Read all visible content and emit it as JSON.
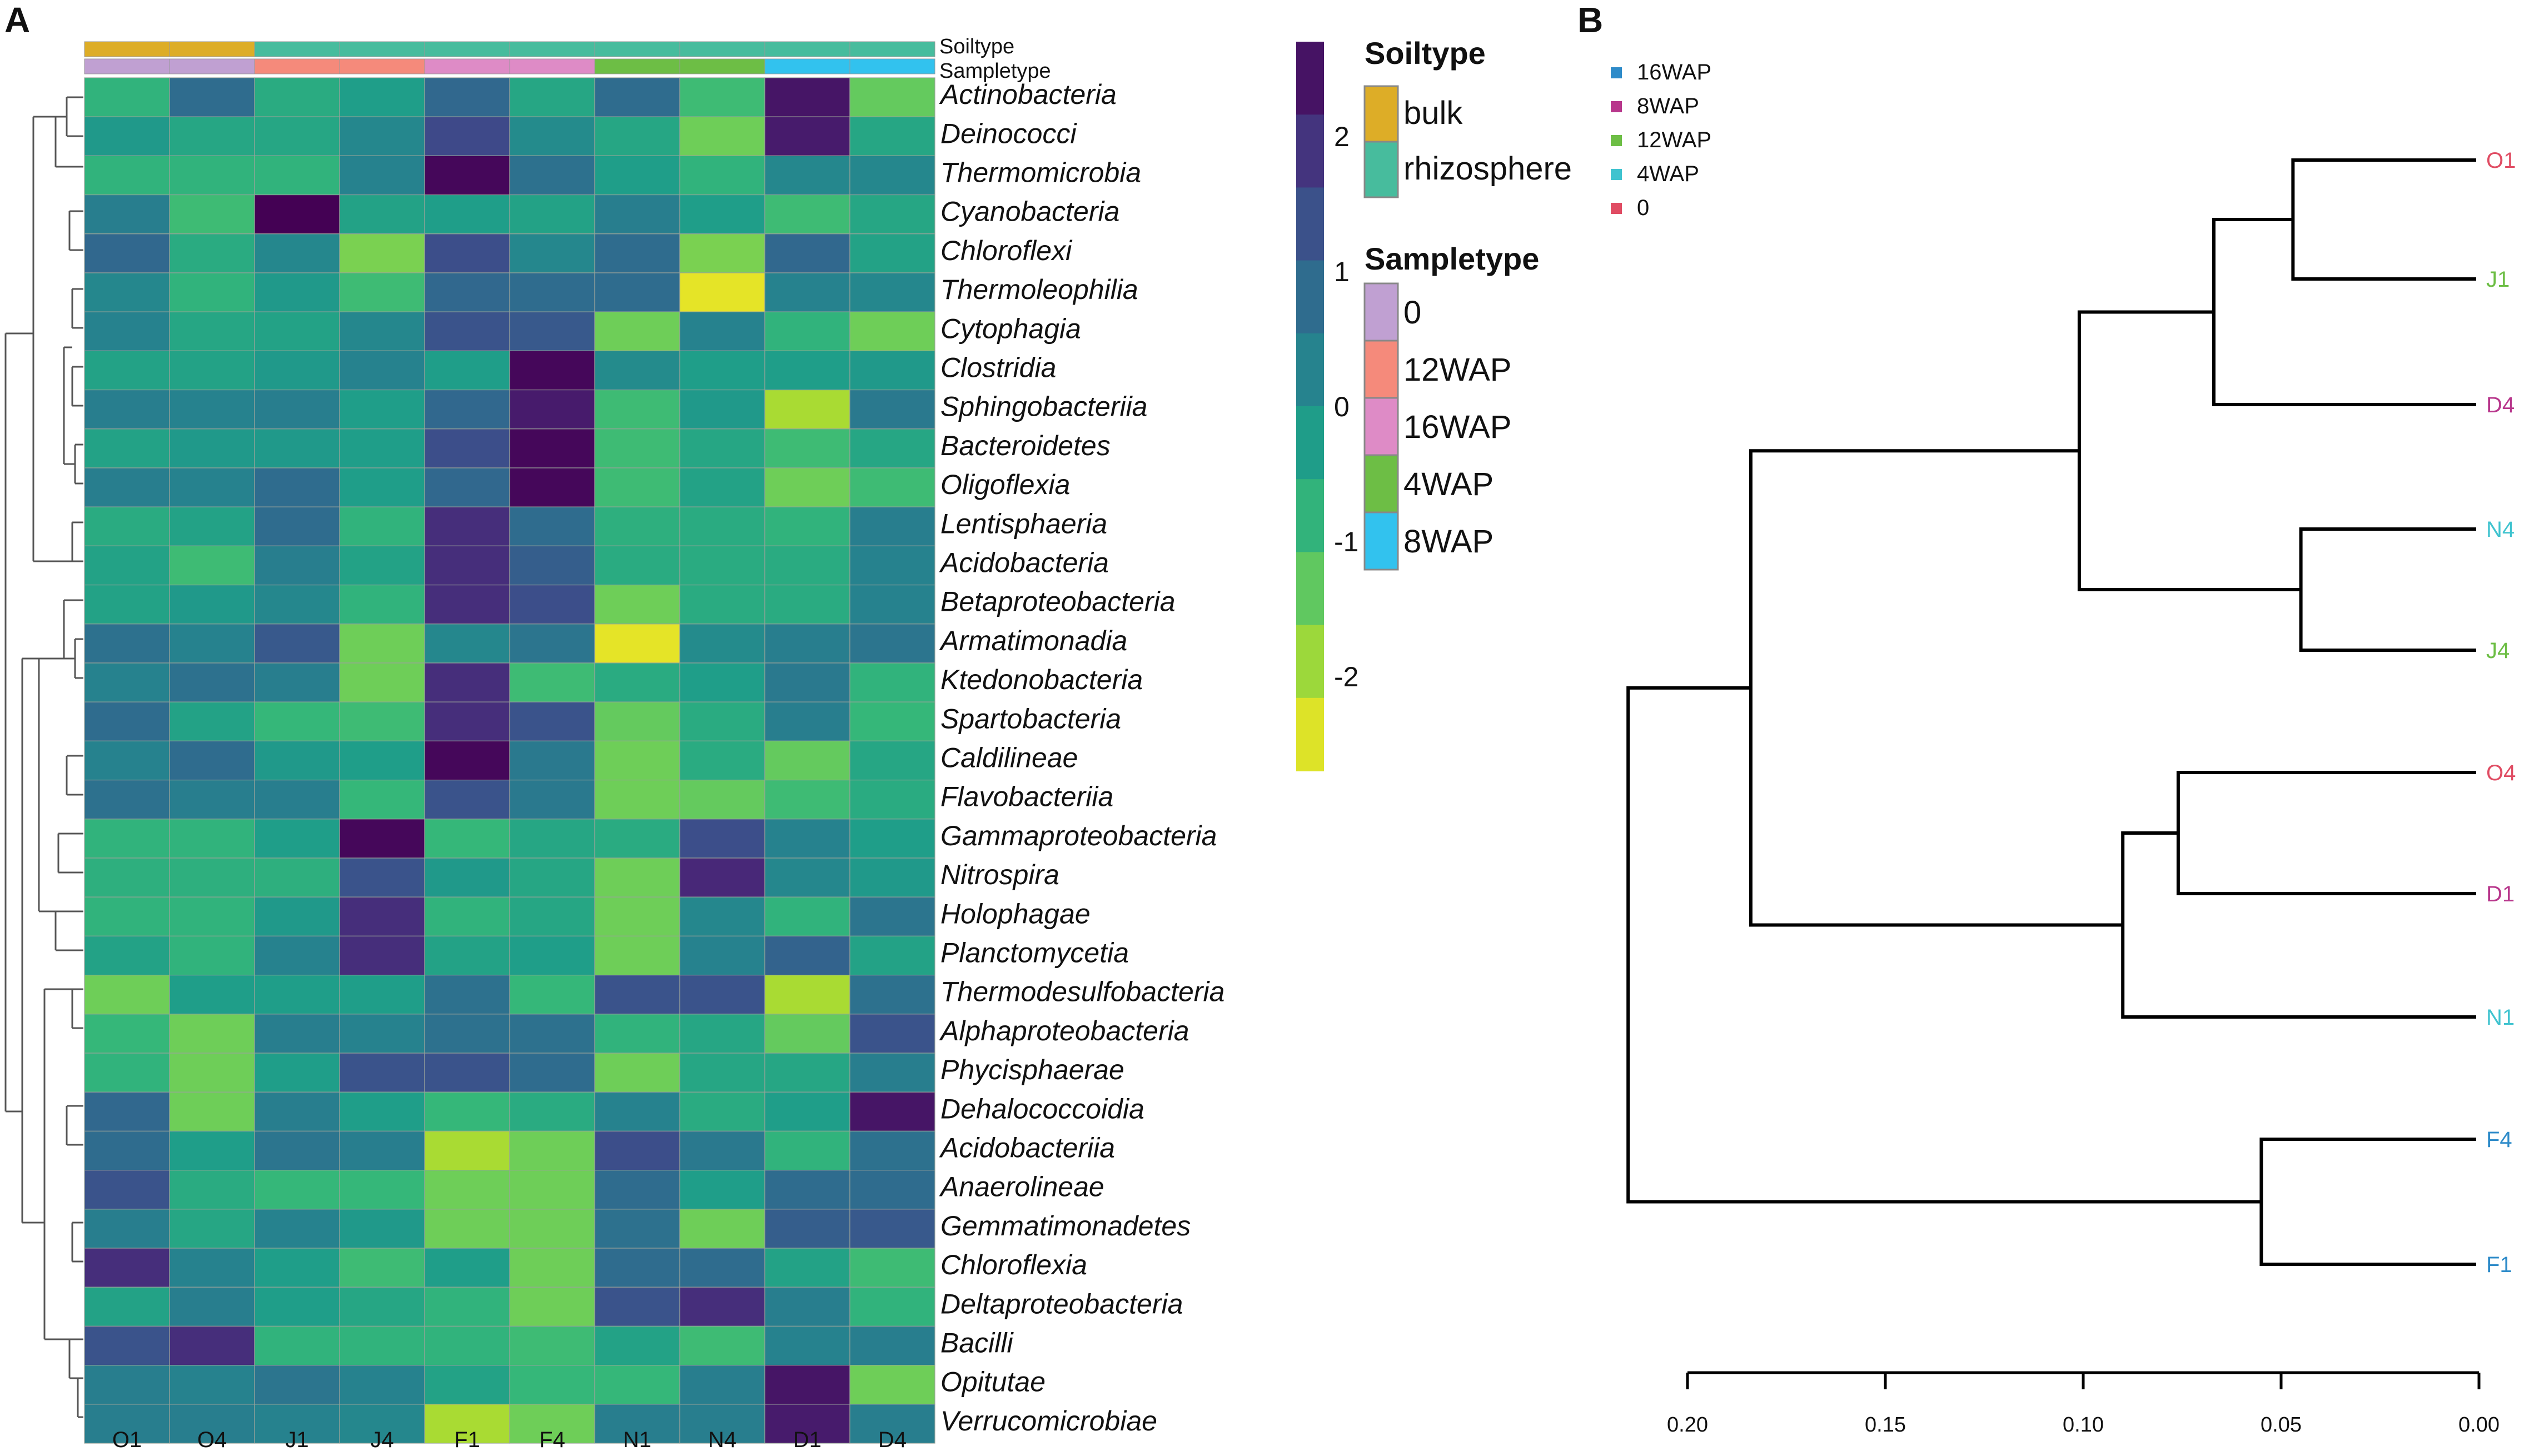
{
  "panels": {
    "a": "A",
    "b": "B"
  },
  "colors": {
    "bulk": "#DDAD27",
    "rhizosphere": "#47BC9D",
    "s0": "#C0A0D2",
    "s12WAP": "#F58A7B",
    "s16WAP": "#DE8BC6",
    "s4WAP": "#6DBE45",
    "s8WAP": "#32C2EE",
    "leaf0": "#E04C63",
    "leaf4WAP": "#3FC3CF",
    "leaf12WAP": "#6DBE45",
    "leaf8WAP": "#B8378C",
    "leaf16WAP": "#2E8BC9"
  },
  "heatmap": {
    "annotation_labels": [
      "Soiltype",
      "Sampletype"
    ],
    "columns": [
      "O1",
      "O4",
      "J1",
      "J4",
      "F1",
      "F4",
      "N1",
      "N4",
      "D1",
      "D4"
    ],
    "soiltype": [
      "bulk",
      "bulk",
      "rhizosphere",
      "rhizosphere",
      "rhizosphere",
      "rhizosphere",
      "rhizosphere",
      "rhizosphere",
      "rhizosphere",
      "rhizosphere"
    ],
    "sampletype": [
      "0",
      "0",
      "12WAP",
      "12WAP",
      "16WAP",
      "16WAP",
      "4WAP",
      "4WAP",
      "8WAP",
      "8WAP"
    ],
    "rows": [
      "Actinobacteria",
      "Deinococci",
      "Thermomicrobia",
      "Cyanobacteria",
      "Chloroflexi",
      "Thermoleophilia",
      "Cytophagia",
      "Clostridia",
      "Sphingobacteriia",
      "Bacteroidetes",
      "Oligoflexia",
      "Lentisphaeria",
      "Acidobacteria",
      "Betaproteobacteria",
      "Armatimonadia",
      "Ktedonobacteria",
      "Spartobacteria",
      "Caldilineae",
      "Flavobacteriia",
      "Gammaproteobacteria",
      "Nitrospira",
      "Holophagae",
      "Planctomycetia",
      "Thermodesulfobacteria",
      "Alphaproteobacteria",
      "Phycisphaerae",
      "Dehalococcoidia",
      "Acidobacteriia",
      "Anaerolineae",
      "Gemmatimonadetes",
      "Chloroflexia",
      "Deltaproteobacteria",
      "Bacilli",
      "Opitutae",
      "Verrucomicrobiae"
    ],
    "values": [
      [
        -0.8,
        0.8,
        -0.6,
        -0.3,
        0.9,
        -0.5,
        0.8,
        -1.0,
        2.4,
        -1.4
      ],
      [
        -0.2,
        -0.5,
        -0.5,
        0.2,
        1.5,
        0.1,
        -0.5,
        -1.5,
        2.3,
        -0.5
      ],
      [
        -0.8,
        -0.8,
        -0.8,
        0.3,
        2.6,
        0.7,
        -0.3,
        -0.8,
        0.2,
        0.2
      ],
      [
        0.4,
        -1.0,
        2.7,
        -0.4,
        -0.3,
        -0.4,
        0.4,
        -0.3,
        -1.0,
        -0.5
      ],
      [
        0.9,
        -0.6,
        0.2,
        -1.6,
        1.4,
        0.2,
        0.8,
        -1.6,
        0.9,
        -0.4
      ],
      [
        0.2,
        -0.8,
        -0.2,
        -1.0,
        0.9,
        0.8,
        0.8,
        -2.5,
        0.3,
        0.2
      ],
      [
        0.3,
        -0.5,
        -0.4,
        0.2,
        1.3,
        1.2,
        -1.5,
        0.3,
        -0.8,
        -1.5
      ],
      [
        -0.4,
        -0.4,
        -0.2,
        0.3,
        -0.3,
        2.6,
        0.1,
        -0.3,
        -0.3,
        -0.2
      ],
      [
        0.4,
        0.3,
        0.4,
        -0.3,
        0.9,
        2.3,
        -1.0,
        -0.2,
        -2.0,
        0.5
      ],
      [
        -0.4,
        -0.2,
        -0.2,
        -0.3,
        1.4,
        2.6,
        -1.0,
        -0.5,
        -1.0,
        -0.5
      ],
      [
        0.4,
        0.3,
        0.8,
        -0.3,
        0.9,
        2.6,
        -1.0,
        -0.4,
        -1.5,
        -1.0
      ],
      [
        -0.6,
        -0.4,
        0.8,
        -0.8,
        2.0,
        0.8,
        -0.7,
        -0.6,
        -0.8,
        0.4
      ],
      [
        -0.4,
        -1.0,
        0.4,
        -0.4,
        2.0,
        1.1,
        -0.6,
        -0.6,
        -0.6,
        0.3
      ],
      [
        -0.4,
        -0.2,
        0.2,
        -0.8,
        2.0,
        1.4,
        -1.5,
        -0.6,
        -0.6,
        0.3
      ],
      [
        0.7,
        0.3,
        1.2,
        -1.5,
        0.2,
        0.6,
        -2.5,
        0.1,
        0.4,
        0.6
      ],
      [
        0.3,
        0.7,
        0.4,
        -1.5,
        2.0,
        -1.0,
        -0.6,
        -0.3,
        0.5,
        -0.8
      ],
      [
        0.8,
        -0.4,
        -0.9,
        -1.0,
        2.0,
        1.3,
        -1.4,
        -0.6,
        0.4,
        -0.9
      ],
      [
        0.3,
        0.8,
        -0.2,
        -0.3,
        2.6,
        0.5,
        -1.5,
        -0.6,
        -1.4,
        -0.5
      ],
      [
        0.7,
        0.4,
        0.4,
        -0.9,
        1.3,
        0.5,
        -1.5,
        -1.4,
        -1.0,
        -0.6
      ],
      [
        -0.8,
        -0.8,
        -0.3,
        2.6,
        -0.9,
        -0.5,
        -0.6,
        1.4,
        0.3,
        -0.3
      ],
      [
        -0.7,
        -0.7,
        -0.7,
        1.3,
        -0.2,
        -0.5,
        -1.5,
        2.1,
        0.2,
        -0.2
      ],
      [
        -0.8,
        -0.8,
        -0.2,
        2.0,
        -0.8,
        -0.5,
        -1.5,
        0.2,
        -0.8,
        0.6
      ],
      [
        -0.4,
        -0.8,
        0.3,
        2.0,
        -0.4,
        -0.3,
        -1.5,
        0.3,
        1.0,
        -0.4
      ],
      [
        -1.5,
        -0.3,
        -0.3,
        -0.3,
        0.7,
        -0.9,
        1.3,
        1.3,
        -2.0,
        0.7
      ],
      [
        -0.9,
        -1.5,
        0.4,
        0.3,
        0.7,
        0.7,
        -0.8,
        -0.5,
        -1.4,
        1.3
      ],
      [
        -0.8,
        -1.5,
        -0.3,
        1.3,
        1.3,
        0.8,
        -1.5,
        -0.5,
        -0.5,
        0.4
      ],
      [
        0.9,
        -1.5,
        0.4,
        -0.3,
        -0.9,
        -0.6,
        0.3,
        -0.6,
        -0.3,
        2.4
      ],
      [
        0.8,
        -0.3,
        0.6,
        0.4,
        -2.0,
        -1.5,
        1.4,
        0.5,
        -0.8,
        0.7
      ],
      [
        1.3,
        -0.6,
        -0.9,
        -0.9,
        -1.5,
        -1.5,
        0.8,
        -0.3,
        0.8,
        0.8
      ],
      [
        0.4,
        -0.5,
        0.3,
        -0.2,
        -1.5,
        -1.5,
        0.7,
        -1.5,
        1.1,
        1.2
      ],
      [
        2.0,
        0.3,
        -0.3,
        -1.0,
        -0.3,
        -1.5,
        0.8,
        0.8,
        -0.4,
        -1.0
      ],
      [
        -0.4,
        0.4,
        -0.3,
        -0.5,
        -0.8,
        -1.5,
        1.3,
        2.0,
        0.4,
        -0.8
      ],
      [
        1.3,
        2.0,
        -0.8,
        -0.8,
        -0.8,
        -1.0,
        -0.4,
        -1.0,
        0.3,
        0.4
      ],
      [
        0.4,
        0.3,
        0.6,
        0.3,
        -0.4,
        -0.9,
        -0.9,
        0.4,
        2.4,
        -1.5
      ],
      [
        0.4,
        0.4,
        0.3,
        0.2,
        -2.0,
        -1.5,
        0.4,
        0.4,
        2.3,
        0.4
      ]
    ],
    "color_scale": {
      "ticks": [
        "2",
        "1",
        "0",
        "-1",
        "-2"
      ],
      "range": [
        -2.7,
        2.7
      ]
    }
  },
  "legend": {
    "soiltype_title": "Soiltype",
    "soiltype_items": [
      "bulk",
      "rhizosphere"
    ],
    "sampletype_title": "Sampletype",
    "sampletype_items": [
      "0",
      "12WAP",
      "16WAP",
      "4WAP",
      "8WAP"
    ]
  },
  "chart_data": {
    "type": "dendrogram",
    "legend": [
      "16WAP",
      "8WAP",
      "12WAP",
      "4WAP",
      "0"
    ],
    "leaves": [
      "O1",
      "J1",
      "D4",
      "N4",
      "J4",
      "O4",
      "D1",
      "N1",
      "F4",
      "F1"
    ],
    "leaf_groups": [
      "0",
      "12WAP",
      "8WAP",
      "4WAP",
      "12WAP",
      "0",
      "8WAP",
      "4WAP",
      "16WAP",
      "16WAP"
    ],
    "merges": [
      {
        "a": "O1",
        "b": "J1",
        "height": 0.047
      },
      {
        "a": "N4",
        "b": "J4",
        "height": 0.045
      },
      {
        "a": "F4",
        "b": "F1",
        "height": 0.055
      },
      {
        "a": "O4",
        "b": "D1",
        "height": 0.076
      },
      {
        "a": "O1+J1",
        "b": "D4",
        "height": 0.067
      },
      {
        "a": "O4+D1",
        "b": "N1",
        "height": 0.09
      },
      {
        "a": "O1+J1+D4",
        "b": "N4+J4",
        "height": 0.101
      },
      {
        "a": "O1..J4",
        "b": "O4+D1+N1",
        "height": 0.184
      },
      {
        "a": "O1..N1",
        "b": "F4+F1",
        "height": 0.215
      }
    ],
    "x_ticks": [
      "0.20",
      "0.15",
      "0.10",
      "0.05",
      "0.00"
    ],
    "x_range": [
      0.2,
      0.0
    ]
  }
}
